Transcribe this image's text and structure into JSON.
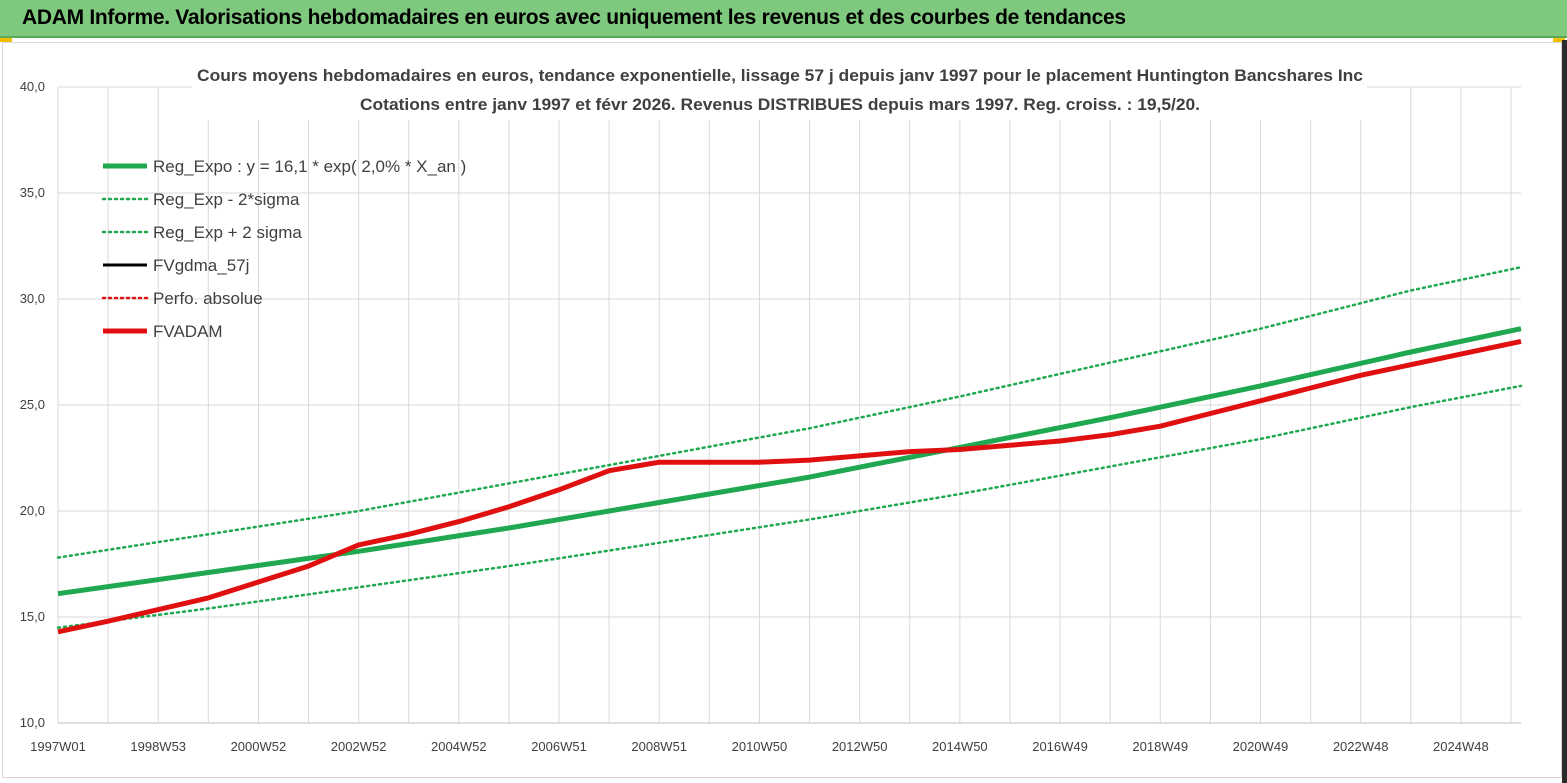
{
  "banner": {
    "title": "ADAM Informe. Valorisations hebdomadaires en euros avec uniquement les revenus et des courbes de tendances"
  },
  "colors": {
    "banner_bg": "#7fc97f",
    "green": "#1fa84f",
    "red": "#e01010",
    "black": "#000000",
    "grid": "#d9d9d9",
    "text": "#404040"
  },
  "chart_data": {
    "type": "line",
    "title_lines": [
      "Cours moyens hebdomadaires en euros, tendance exponentielle, lissage 57 j depuis janv 1997  pour le placement Huntington Bancshares Inc",
      "Cotations entre janv 1997 et févr 2026. Revenus DISTRIBUES depuis mars 1997. Reg. croiss. : 19,5/20."
    ],
    "ylim": [
      10,
      40
    ],
    "y_ticks": [
      "10,0",
      "15,0",
      "20,0",
      "25,0",
      "30,0",
      "35,0",
      "40,0"
    ],
    "y_tick_values": [
      10,
      15,
      20,
      25,
      30,
      35,
      40
    ],
    "xlim": [
      1997.0,
      2026.2
    ],
    "x_ticks": [
      "1997W01",
      "1998W53",
      "2000W52",
      "2002W52",
      "2004W52",
      "2006W51",
      "2008W51",
      "2010W50",
      "2012W50",
      "2014W50",
      "2016W49",
      "2018W49",
      "2020W49",
      "2022W48",
      "2024W48"
    ],
    "x_tick_years": [
      1997.0,
      1999.0,
      2001.0,
      2003.0,
      2005.0,
      2007.0,
      2009.0,
      2011.0,
      2013.0,
      2015.0,
      2017.0,
      2019.0,
      2021.0,
      2023.0,
      2025.0
    ],
    "grid": true,
    "legend_position": "top-left",
    "series": [
      {
        "name": "Reg_Expo : y = 16,1 * exp( 2,0% *  X_an )",
        "style": "solid-thick",
        "color": "#1fa84f",
        "x": [
          1997.0,
          2000.0,
          2003.0,
          2006.0,
          2009.0,
          2012.0,
          2015.0,
          2018.0,
          2021.0,
          2024.0,
          2026.2
        ],
        "y": [
          16.1,
          17.1,
          18.1,
          19.2,
          20.4,
          21.6,
          23.0,
          24.4,
          25.9,
          27.5,
          28.6
        ]
      },
      {
        "name": "Reg_Exp - 2*sigma",
        "style": "dotted",
        "color": "#1fa84f",
        "x": [
          1997.0,
          2000.0,
          2003.0,
          2006.0,
          2009.0,
          2012.0,
          2015.0,
          2018.0,
          2021.0,
          2024.0,
          2026.2
        ],
        "y": [
          14.5,
          15.4,
          16.4,
          17.4,
          18.5,
          19.6,
          20.8,
          22.1,
          23.4,
          24.9,
          25.9
        ]
      },
      {
        "name": "Reg_Exp + 2 sigma",
        "style": "dotted",
        "color": "#1fa84f",
        "x": [
          1997.0,
          2000.0,
          2003.0,
          2006.0,
          2009.0,
          2012.0,
          2015.0,
          2018.0,
          2021.0,
          2024.0,
          2026.2
        ],
        "y": [
          17.8,
          18.9,
          20.0,
          21.3,
          22.6,
          23.9,
          25.4,
          27.0,
          28.6,
          30.4,
          31.5
        ]
      },
      {
        "name": "FVgdma_57j",
        "style": "solid",
        "color": "#000000",
        "x": [],
        "y": []
      },
      {
        "name": "Perfo. absolue",
        "style": "dotted",
        "color": "#e01010",
        "x": [],
        "y": []
      },
      {
        "name": "FVADAM",
        "style": "solid-thick",
        "color": "#e01010",
        "x": [
          1997.0,
          1998.0,
          2000.0,
          2002.0,
          2003.0,
          2004.0,
          2005.0,
          2006.0,
          2007.0,
          2008.0,
          2009.0,
          2010.0,
          2011.0,
          2012.0,
          2013.0,
          2014.0,
          2015.0,
          2016.0,
          2017.0,
          2018.0,
          2019.0,
          2020.0,
          2021.0,
          2022.0,
          2023.0,
          2024.0,
          2025.0,
          2026.2
        ],
        "y": [
          14.3,
          14.8,
          15.9,
          17.4,
          18.4,
          18.9,
          19.5,
          20.2,
          21.0,
          21.9,
          22.3,
          22.3,
          22.3,
          22.4,
          22.6,
          22.8,
          22.9,
          23.1,
          23.3,
          23.6,
          24.0,
          24.6,
          25.2,
          25.8,
          26.4,
          26.9,
          27.4,
          28.0
        ]
      }
    ]
  }
}
